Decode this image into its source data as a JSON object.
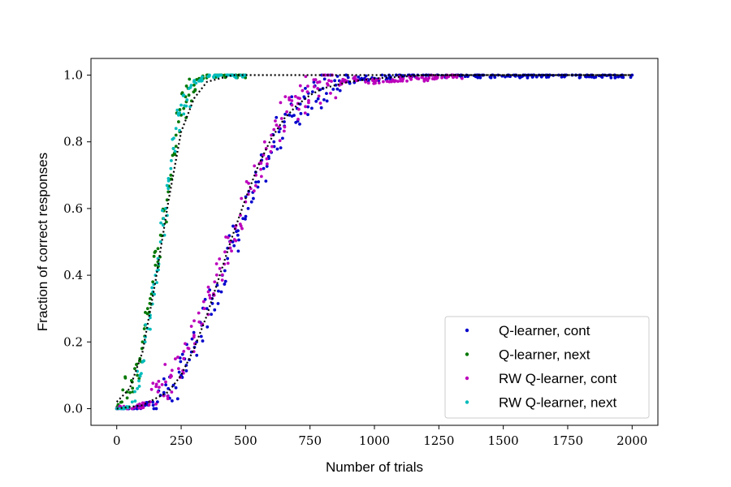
{
  "chart_data": {
    "type": "scatter",
    "title": "",
    "xlabel": "Number of trials",
    "ylabel": "Fraction of correct responses",
    "xlim": [
      -100,
      2100
    ],
    "ylim": [
      -0.05,
      1.05
    ],
    "x_ticks": [
      0,
      250,
      500,
      750,
      1000,
      1250,
      1500,
      1750,
      2000
    ],
    "x_tick_labels": [
      "0",
      "250",
      "500",
      "750",
      "1000",
      "1250",
      "1500",
      "1750",
      "2000"
    ],
    "y_ticks": [
      0.0,
      0.2,
      0.4,
      0.6,
      0.8,
      1.0
    ],
    "y_tick_labels": [
      "0.0",
      "0.2",
      "0.4",
      "0.6",
      "0.8",
      "1.0"
    ],
    "grid": false,
    "legend_position": "lower-right",
    "series": [
      {
        "name": "Q-learner, cont",
        "color": "#0000cc",
        "points": [
          [
            0,
            0.0
          ],
          [
            40,
            0.0
          ],
          [
            80,
            0.0
          ],
          [
            110,
            0.01
          ],
          [
            140,
            0.02
          ],
          [
            170,
            0.04
          ],
          [
            200,
            0.06
          ],
          [
            220,
            0.07
          ],
          [
            250,
            0.1
          ],
          [
            270,
            0.13
          ],
          [
            290,
            0.17
          ],
          [
            310,
            0.2
          ],
          [
            330,
            0.25
          ],
          [
            350,
            0.3
          ],
          [
            370,
            0.33
          ],
          [
            390,
            0.37
          ],
          [
            410,
            0.4
          ],
          [
            430,
            0.45
          ],
          [
            450,
            0.5
          ],
          [
            470,
            0.52
          ],
          [
            490,
            0.57
          ],
          [
            510,
            0.6
          ],
          [
            530,
            0.63
          ],
          [
            550,
            0.68
          ],
          [
            570,
            0.72
          ],
          [
            590,
            0.75
          ],
          [
            610,
            0.8
          ],
          [
            630,
            0.83
          ],
          [
            650,
            0.86
          ],
          [
            670,
            0.88
          ],
          [
            700,
            0.9
          ],
          [
            730,
            0.93
          ],
          [
            760,
            0.95
          ],
          [
            800,
            0.96
          ],
          [
            850,
            0.97
          ],
          [
            900,
            0.98
          ],
          [
            950,
            0.99
          ],
          [
            1000,
            0.99
          ],
          [
            1100,
            1.0
          ],
          [
            1200,
            1.0
          ],
          [
            1300,
            1.0
          ],
          [
            1400,
            1.0
          ],
          [
            1480,
            1.0
          ],
          [
            1600,
            1.0
          ],
          [
            1800,
            1.0
          ],
          [
            2000,
            1.0
          ]
        ]
      },
      {
        "name": "Q-learner, next",
        "color": "#007700",
        "points": [
          [
            0,
            0.0
          ],
          [
            20,
            0.02
          ],
          [
            40,
            0.05
          ],
          [
            60,
            0.08
          ],
          [
            70,
            0.12
          ],
          [
            80,
            0.1
          ],
          [
            90,
            0.15
          ],
          [
            100,
            0.2
          ],
          [
            110,
            0.25
          ],
          [
            120,
            0.3
          ],
          [
            130,
            0.33
          ],
          [
            140,
            0.38
          ],
          [
            150,
            0.43
          ],
          [
            160,
            0.48
          ],
          [
            170,
            0.52
          ],
          [
            180,
            0.57
          ],
          [
            190,
            0.6
          ],
          [
            200,
            0.65
          ],
          [
            210,
            0.7
          ],
          [
            220,
            0.78
          ],
          [
            230,
            0.82
          ],
          [
            240,
            0.86
          ],
          [
            250,
            0.88
          ],
          [
            260,
            0.9
          ],
          [
            270,
            0.92
          ],
          [
            280,
            0.94
          ],
          [
            300,
            0.97
          ],
          [
            320,
            0.99
          ],
          [
            350,
            1.0
          ],
          [
            400,
            1.0
          ],
          [
            450,
            1.0
          ],
          [
            500,
            1.0
          ]
        ]
      },
      {
        "name": "RW Q-learner, cont",
        "color": "#bb00bb",
        "points": [
          [
            0,
            0.0
          ],
          [
            60,
            0.0
          ],
          [
            100,
            0.01
          ],
          [
            130,
            0.02
          ],
          [
            160,
            0.05
          ],
          [
            190,
            0.08
          ],
          [
            210,
            0.1
          ],
          [
            240,
            0.12
          ],
          [
            260,
            0.15
          ],
          [
            280,
            0.18
          ],
          [
            300,
            0.22
          ],
          [
            320,
            0.26
          ],
          [
            340,
            0.3
          ],
          [
            360,
            0.34
          ],
          [
            380,
            0.38
          ],
          [
            400,
            0.42
          ],
          [
            420,
            0.47
          ],
          [
            440,
            0.5
          ],
          [
            460,
            0.54
          ],
          [
            480,
            0.58
          ],
          [
            500,
            0.62
          ],
          [
            520,
            0.66
          ],
          [
            540,
            0.7
          ],
          [
            560,
            0.74
          ],
          [
            580,
            0.78
          ],
          [
            600,
            0.82
          ],
          [
            620,
            0.85
          ],
          [
            640,
            0.87
          ],
          [
            660,
            0.89
          ],
          [
            680,
            0.91
          ],
          [
            710,
            0.93
          ],
          [
            740,
            0.95
          ],
          [
            780,
            0.96
          ],
          [
            820,
            0.97
          ],
          [
            870,
            0.98
          ],
          [
            920,
            0.99
          ],
          [
            1000,
            0.98
          ],
          [
            1100,
            0.99
          ],
          [
            1200,
            0.99
          ],
          [
            1300,
            1.0
          ],
          [
            1340,
            0.99
          ]
        ]
      },
      {
        "name": "RW Q-learner, next",
        "color": "#00bbbb",
        "points": [
          [
            0,
            0.0
          ],
          [
            30,
            0.0
          ],
          [
            60,
            0.02
          ],
          [
            80,
            0.06
          ],
          [
            90,
            0.1
          ],
          [
            100,
            0.14
          ],
          [
            110,
            0.2
          ],
          [
            120,
            0.24
          ],
          [
            130,
            0.28
          ],
          [
            140,
            0.35
          ],
          [
            150,
            0.4
          ],
          [
            160,
            0.45
          ],
          [
            170,
            0.5
          ],
          [
            180,
            0.55
          ],
          [
            190,
            0.6
          ],
          [
            200,
            0.66
          ],
          [
            210,
            0.72
          ],
          [
            220,
            0.78
          ],
          [
            230,
            0.84
          ],
          [
            240,
            0.88
          ],
          [
            250,
            0.91
          ],
          [
            260,
            0.94
          ],
          [
            280,
            0.96
          ],
          [
            300,
            0.98
          ],
          [
            330,
            0.99
          ],
          [
            360,
            1.0
          ],
          [
            400,
            1.0
          ],
          [
            450,
            1.0
          ],
          [
            500,
            1.0
          ]
        ]
      }
    ],
    "fit_line": {
      "style": "dotted",
      "color": "#000000",
      "curves": [
        {
          "points": [
            [
              0,
              0.02
            ],
            [
              50,
              0.06
            ],
            [
              100,
              0.17
            ],
            [
              150,
              0.38
            ],
            [
              200,
              0.62
            ],
            [
              250,
              0.83
            ],
            [
              300,
              0.93
            ],
            [
              350,
              0.98
            ],
            [
              400,
              0.99
            ],
            [
              450,
              1.0
            ],
            [
              2000,
              1.0
            ]
          ]
        },
        {
          "points": [
            [
              0,
              0.0
            ],
            [
              100,
              0.01
            ],
            [
              200,
              0.05
            ],
            [
              250,
              0.1
            ],
            [
              300,
              0.18
            ],
            [
              350,
              0.28
            ],
            [
              400,
              0.4
            ],
            [
              450,
              0.52
            ],
            [
              500,
              0.63
            ],
            [
              550,
              0.73
            ],
            [
              600,
              0.81
            ],
            [
              650,
              0.87
            ],
            [
              700,
              0.91
            ],
            [
              750,
              0.94
            ],
            [
              800,
              0.96
            ],
            [
              900,
              0.98
            ],
            [
              1000,
              0.99
            ],
            [
              1200,
              1.0
            ],
            [
              2000,
              1.0
            ]
          ]
        }
      ]
    }
  }
}
